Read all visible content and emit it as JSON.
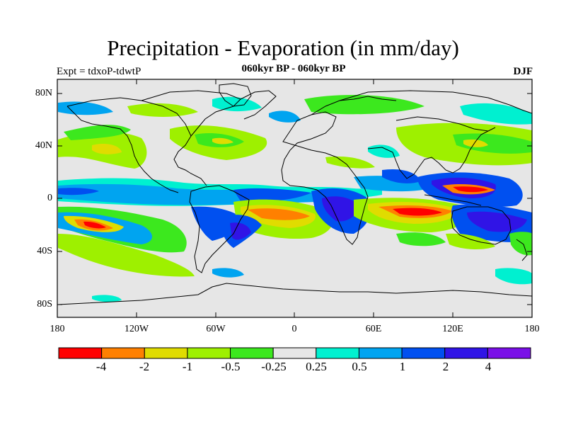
{
  "title": "Precipitation - Evaporation (in mm/day)",
  "subtitle": "060kyr BP - 060kyr BP",
  "experiment_label": "Expt = tdxoP-tdwtP",
  "season_label": "DJF",
  "lat_labels": [
    "80N",
    "40N",
    "0",
    "40S",
    "80S"
  ],
  "lon_labels": [
    "180",
    "120W",
    "60W",
    "0",
    "60E",
    "120E",
    "180"
  ],
  "colorbar": {
    "colors": [
      "#ff0000",
      "#ff8000",
      "#e0dc00",
      "#9ef000",
      "#3ce81e",
      "#e6e6e6",
      "#00f0d0",
      "#00a4f0",
      "#0050f0",
      "#3014e6",
      "#7a10e8"
    ],
    "labels": [
      "-4",
      "-2",
      "-1",
      "-0.5",
      "-0.25",
      "0.25",
      "0.5",
      "1",
      "2",
      "4"
    ]
  },
  "map_colors": {
    "background": "#e6e6e6",
    "coast": "#000000"
  }
}
